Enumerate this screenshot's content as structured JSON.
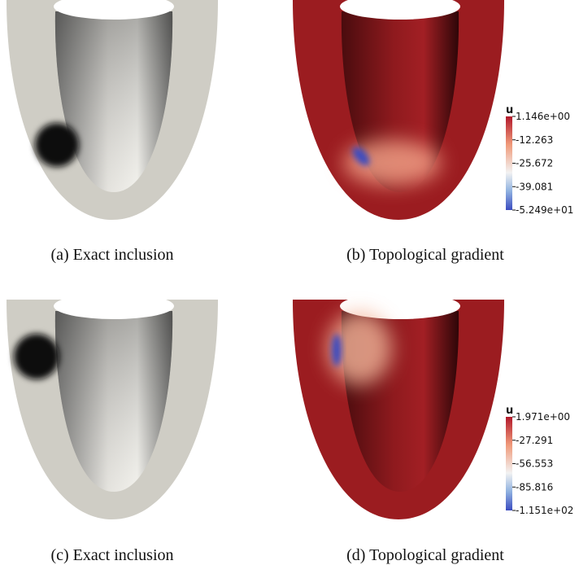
{
  "figures": [
    {
      "caption": "(a) Exact inclusion"
    },
    {
      "caption": "(b) Topological gradient",
      "colorbar": {
        "title": "u",
        "ticks": [
          "1.146e+00",
          "-12.263",
          "-25.672",
          "-39.081",
          "-5.249e+01"
        ]
      }
    },
    {
      "caption": "(c) Exact inclusion"
    },
    {
      "caption": "(d) Topological gradient",
      "colorbar": {
        "title": "u",
        "ticks": [
          "1.971e+00",
          "-27.291",
          "-56.553",
          "-85.816",
          "-1.151e+02"
        ]
      }
    }
  ]
}
